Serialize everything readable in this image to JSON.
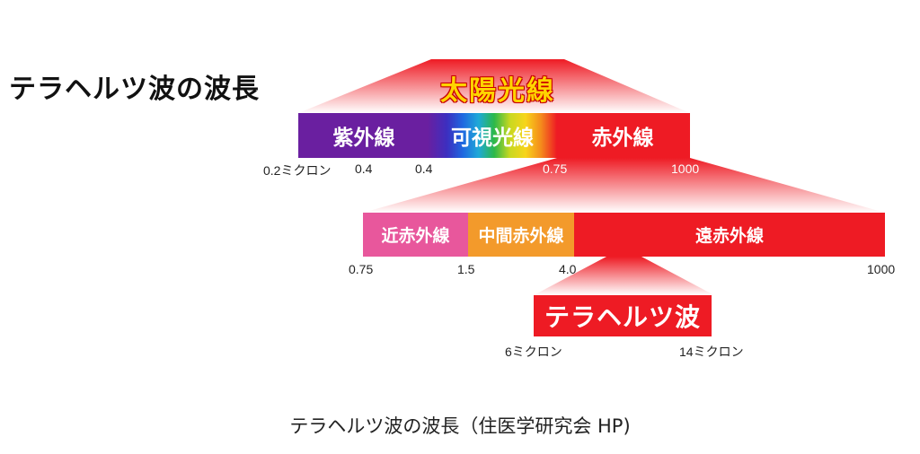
{
  "title": "テラヘルツ波の波長",
  "caption": "テラヘルツ波の波長（住医学研究会 HP)",
  "sunlight_label": "太陽光線",
  "top_bands": [
    {
      "label": "紫外線",
      "color": "#6a1fa0"
    },
    {
      "label": "可視光線",
      "color": "spectrum"
    },
    {
      "label": "赤外線",
      "color": "#ee1b24"
    }
  ],
  "top_ticks": [
    "0.2ミクロン",
    "0.4",
    "0.4",
    "0.75",
    "1000"
  ],
  "infrared_bands": [
    {
      "label": "近赤外線",
      "color": "#e8579c"
    },
    {
      "label": "中間赤外線",
      "color": "#f39a2b"
    },
    {
      "label": "遠赤外線",
      "color": "#ee1b24"
    }
  ],
  "infrared_ticks": [
    "0.75",
    "1.5",
    "4.0",
    "1000"
  ],
  "terahertz_label": "テラヘルツ波",
  "terahertz_ticks": [
    "6ミクロン",
    "14ミクロン"
  ],
  "colors": {
    "accent_red": "#ee1b24",
    "sun_text": "#ffd400"
  }
}
